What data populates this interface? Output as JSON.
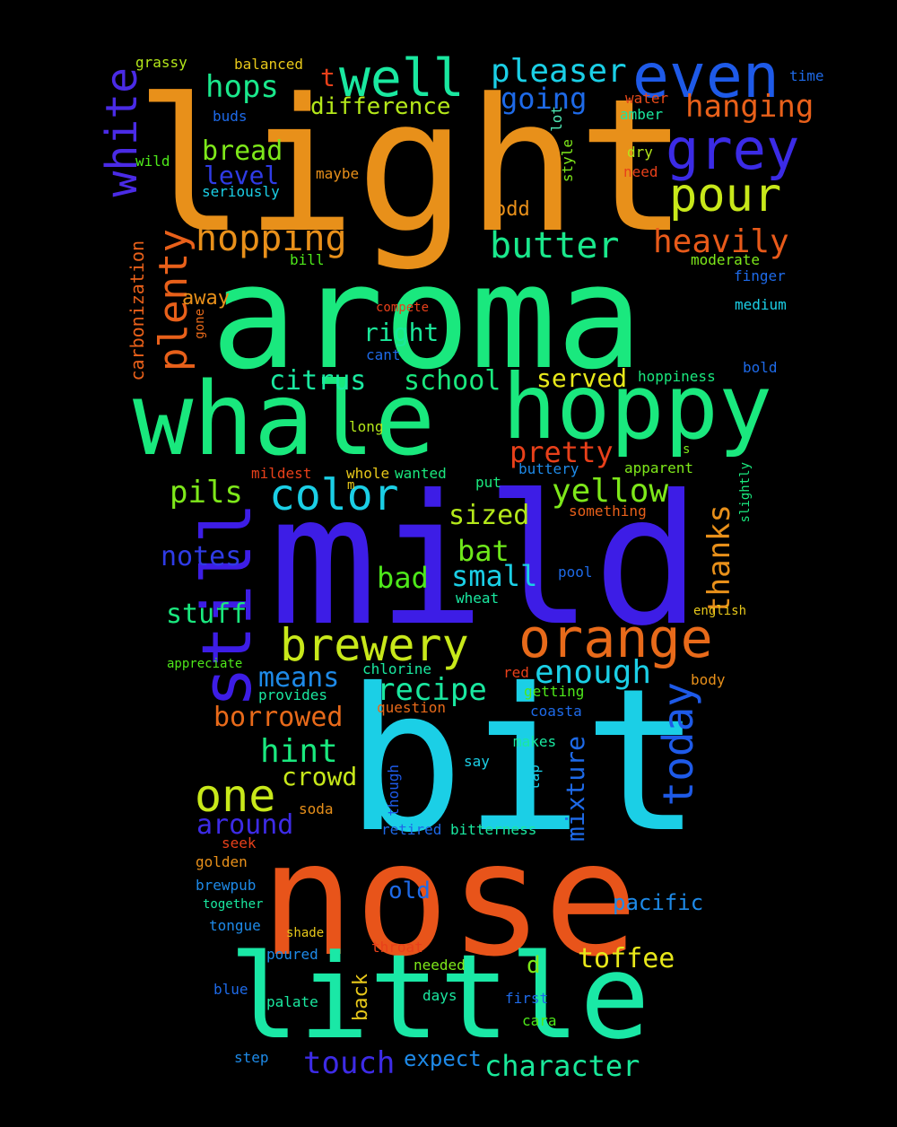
{
  "words": [
    {
      "t": "light",
      "c": "#E8901A",
      "r": 0
    },
    {
      "t": "aroma",
      "c": "#1AE87E",
      "r": 0
    },
    {
      "t": "whale",
      "c": "#19E87D",
      "r": 0
    },
    {
      "t": "hoppy",
      "c": "#1AE87E",
      "r": 0
    },
    {
      "t": "mild",
      "c": "#3D1DE6",
      "r": 0
    },
    {
      "t": "bit",
      "c": "#1BCFE6",
      "r": 0
    },
    {
      "t": "nose",
      "c": "#E8541A",
      "r": 0
    },
    {
      "t": "little",
      "c": "#1AE8A6",
      "r": 0
    },
    {
      "t": "still",
      "c": "#3D1DE6",
      "r": 1
    },
    {
      "t": "orange",
      "c": "#E86A1A",
      "r": 0
    },
    {
      "t": "brewery",
      "c": "#C8E81A",
      "r": 0
    },
    {
      "t": "even",
      "c": "#1E5AE8",
      "r": 0
    },
    {
      "t": "well",
      "c": "#1AE8A0",
      "r": 0
    },
    {
      "t": "grey",
      "c": "#3B2BE6",
      "r": 0
    },
    {
      "t": "pour",
      "c": "#C8E81A",
      "r": 0
    },
    {
      "t": "white",
      "c": "#4A2BE6",
      "r": 1
    },
    {
      "t": "color",
      "c": "#1BCFE6",
      "r": 0
    },
    {
      "t": "one",
      "c": "#C8E81A",
      "r": 0
    },
    {
      "t": "today",
      "c": "#1E5AE8",
      "r": 1
    },
    {
      "t": "plenty",
      "c": "#E8601A",
      "r": 1
    },
    {
      "t": "hopping",
      "c": "#E8901A",
      "r": 0
    },
    {
      "t": "butter",
      "c": "#1AE88C",
      "r": 0
    },
    {
      "t": "heavily",
      "c": "#E85A1A",
      "r": 0
    },
    {
      "t": "hanging",
      "c": "#E8601A",
      "r": 0
    },
    {
      "t": "pleaser",
      "c": "#1BCFE6",
      "r": 0
    },
    {
      "t": "going",
      "c": "#1E6AE8",
      "r": 0
    },
    {
      "t": "hops",
      "c": "#1AE88C",
      "r": 0
    },
    {
      "t": "difference",
      "c": "#B4E81A",
      "r": 0
    },
    {
      "t": "t",
      "c": "#E8401A",
      "r": 0
    },
    {
      "t": "bread",
      "c": "#7EE81A",
      "r": 0
    },
    {
      "t": "level",
      "c": "#2F3BE6",
      "r": 0
    },
    {
      "t": "yellow",
      "c": "#7EE81A",
      "r": 0
    },
    {
      "t": "pils",
      "c": "#7EE81A",
      "r": 0
    },
    {
      "t": "pretty",
      "c": "#E8401A",
      "r": 0
    },
    {
      "t": "enough",
      "c": "#1BCFE6",
      "r": 0
    },
    {
      "t": "recipe",
      "c": "#1AE8A0",
      "r": 0
    },
    {
      "t": "borrowed",
      "c": "#E86A1A",
      "r": 0
    },
    {
      "t": "means",
      "c": "#1E8AE8",
      "r": 0
    },
    {
      "t": "hint",
      "c": "#1AE87E",
      "r": 0
    },
    {
      "t": "around",
      "c": "#3D2BE6",
      "r": 0
    },
    {
      "t": "mixture",
      "c": "#1E6AE8",
      "r": 1
    },
    {
      "t": "thanks",
      "c": "#E8901A",
      "r": 1
    },
    {
      "t": "citrus",
      "c": "#1AE8A0",
      "r": 0
    },
    {
      "t": "school",
      "c": "#1AE87E",
      "r": 0
    },
    {
      "t": "served",
      "c": "#E8E81A",
      "r": 0
    },
    {
      "t": "right",
      "c": "#1AE89A",
      "r": 0
    },
    {
      "t": "sized",
      "c": "#B4E81A",
      "r": 0
    },
    {
      "t": "bat",
      "c": "#6EE81A",
      "r": 0
    },
    {
      "t": "small",
      "c": "#1BCFE6",
      "r": 0
    },
    {
      "t": "bad",
      "c": "#4EE81A",
      "r": 0
    },
    {
      "t": "notes",
      "c": "#2F3BE6",
      "r": 0
    },
    {
      "t": "stuff",
      "c": "#1AE87E",
      "r": 0
    },
    {
      "t": "crowd",
      "c": "#C8E81A",
      "r": 0
    },
    {
      "t": "toffee",
      "c": "#E8E81A",
      "r": 0
    },
    {
      "t": "character",
      "c": "#1AE89A",
      "r": 0
    },
    {
      "t": "touch",
      "c": "#3D2BE6",
      "r": 0
    },
    {
      "t": "expect",
      "c": "#1E8AE8",
      "r": 0
    },
    {
      "t": "pacific",
      "c": "#1E8AE8",
      "r": 0
    },
    {
      "t": "old",
      "c": "#1E6AE8",
      "r": 0
    },
    {
      "t": "back",
      "c": "#E8C81A",
      "r": 1
    },
    {
      "t": "d",
      "c": "#7EE81A",
      "r": 0
    },
    {
      "t": "carbonization",
      "c": "#E8601A",
      "r": 1
    },
    {
      "t": "away",
      "c": "#E8901A",
      "r": 0
    },
    {
      "t": "grassy",
      "c": "#B4E81A",
      "r": 0
    },
    {
      "t": "balanced",
      "c": "#E8C81A",
      "r": 0
    },
    {
      "t": "buds",
      "c": "#1E6AE8",
      "r": 0
    },
    {
      "t": "wild",
      "c": "#4EE81A",
      "r": 0
    },
    {
      "t": "seriously",
      "c": "#1BCFE6",
      "r": 0
    },
    {
      "t": "maybe",
      "c": "#E8901A",
      "r": 0
    },
    {
      "t": "odd",
      "c": "#E8901A",
      "r": 0
    },
    {
      "t": "bill",
      "c": "#4EE81A",
      "r": 0
    },
    {
      "t": "lot",
      "c": "#4EE8B4",
      "r": 1
    },
    {
      "t": "style",
      "c": "#7EE81A",
      "r": 1
    },
    {
      "t": "water",
      "c": "#E84A1A",
      "r": 0
    },
    {
      "t": "amber",
      "c": "#1AE8A0",
      "r": 0
    },
    {
      "t": "dry",
      "c": "#B4E81A",
      "r": 0
    },
    {
      "t": "need",
      "c": "#E8401A",
      "r": 0
    },
    {
      "t": "time",
      "c": "#1E6AE8",
      "r": 0
    },
    {
      "t": "moderate",
      "c": "#7EE81A",
      "r": 0
    },
    {
      "t": "finger",
      "c": "#1E6AE8",
      "r": 0
    },
    {
      "t": "medium",
      "c": "#1BCFE6",
      "r": 0
    },
    {
      "t": "bold",
      "c": "#1E6AE8",
      "r": 0
    },
    {
      "t": "hoppiness",
      "c": "#1AE87E",
      "r": 0
    },
    {
      "t": "compete",
      "c": "#E8401A",
      "r": 0
    },
    {
      "t": "gone",
      "c": "#E86A1A",
      "r": 1
    },
    {
      "t": "cant",
      "c": "#1E6AE8",
      "r": 0
    },
    {
      "t": "long",
      "c": "#B4E81A",
      "r": 0
    },
    {
      "t": "mildest",
      "c": "#E8401A",
      "r": 0
    },
    {
      "t": "m",
      "c": "#E8C81A",
      "r": 0
    },
    {
      "t": "whole",
      "c": "#E8C81A",
      "r": 0
    },
    {
      "t": "wanted",
      "c": "#1AE87E",
      "r": 0
    },
    {
      "t": "buttery",
      "c": "#1E8AE8",
      "r": 0
    },
    {
      "t": "apparent",
      "c": "#7EE81A",
      "r": 0
    },
    {
      "t": "s",
      "c": "#7EE81A",
      "r": 0
    },
    {
      "t": "put",
      "c": "#1AE87E",
      "r": 0
    },
    {
      "t": "something",
      "c": "#E8601A",
      "r": 0
    },
    {
      "t": "slightly",
      "c": "#1AE87E",
      "r": 1
    },
    {
      "t": "pool",
      "c": "#1E6AE8",
      "r": 0
    },
    {
      "t": "wheat",
      "c": "#1AE8A0",
      "r": 0
    },
    {
      "t": "english",
      "c": "#E8C81A",
      "r": 0
    },
    {
      "t": "appreciate",
      "c": "#4EE81A",
      "r": 0
    },
    {
      "t": "chlorine",
      "c": "#1AE8A0",
      "r": 0
    },
    {
      "t": "red",
      "c": "#E8401A",
      "r": 0
    },
    {
      "t": "body",
      "c": "#E8901A",
      "r": 0
    },
    {
      "t": "provides",
      "c": "#1AE8A0",
      "r": 0
    },
    {
      "t": "getting",
      "c": "#4EE81A",
      "r": 0
    },
    {
      "t": "question",
      "c": "#E86A1A",
      "r": 0
    },
    {
      "t": "coasta",
      "c": "#1E6AE8",
      "r": 0
    },
    {
      "t": "makes",
      "c": "#1AE8A0",
      "r": 0
    },
    {
      "t": "say",
      "c": "#1BCFE6",
      "r": 0
    },
    {
      "t": "though",
      "c": "#1E5AE8",
      "r": 1
    },
    {
      "t": "tap",
      "c": "#1BCFE6",
      "r": 1
    },
    {
      "t": "soda",
      "c": "#E8901A",
      "r": 0
    },
    {
      "t": "seek",
      "c": "#E8401A",
      "r": 0
    },
    {
      "t": "retired",
      "c": "#1E6AE8",
      "r": 0
    },
    {
      "t": "bitterness",
      "c": "#1AE8A0",
      "r": 0
    },
    {
      "t": "golden",
      "c": "#E8901A",
      "r": 0
    },
    {
      "t": "brewpub",
      "c": "#1E8AE8",
      "r": 0
    },
    {
      "t": "together",
      "c": "#1AE8A0",
      "r": 0
    },
    {
      "t": "tongue",
      "c": "#1E8AE8",
      "r": 0
    },
    {
      "t": "shade",
      "c": "#E8C81A",
      "r": 0
    },
    {
      "t": "poured",
      "c": "#1E8AE8",
      "r": 0
    },
    {
      "t": "throat",
      "c": "#E8401A",
      "r": 0
    },
    {
      "t": "needed",
      "c": "#7EE81A",
      "r": 0
    },
    {
      "t": "blue",
      "c": "#1E6AE8",
      "r": 0
    },
    {
      "t": "palate",
      "c": "#1AE8A0",
      "r": 0
    },
    {
      "t": "days",
      "c": "#1AE8A0",
      "r": 0
    },
    {
      "t": "first",
      "c": "#1E6AE8",
      "r": 0
    },
    {
      "t": "cara",
      "c": "#4EE81A",
      "r": 0
    },
    {
      "t": "step",
      "c": "#1E8AE8",
      "r": 0
    }
  ]
}
